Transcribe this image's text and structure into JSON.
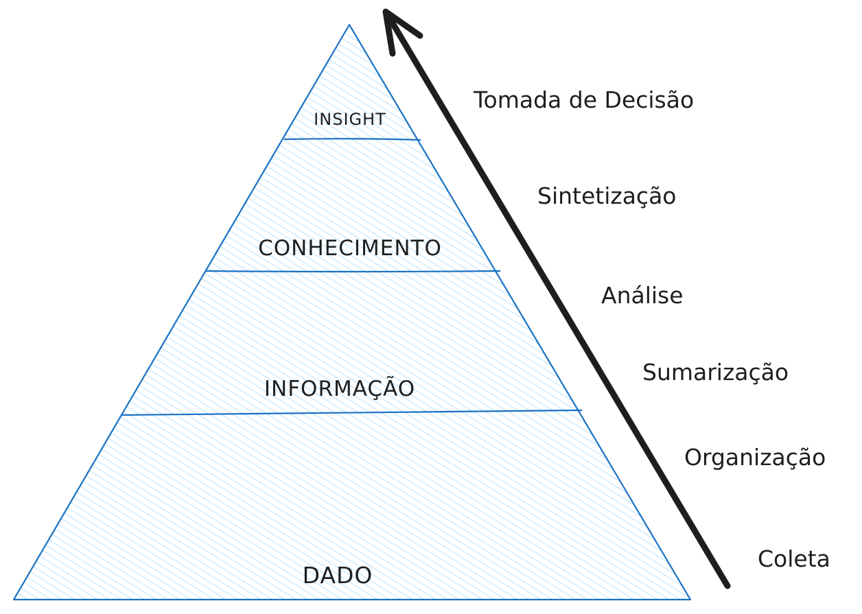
{
  "colors": {
    "pyramid_outline": "#1971c2",
    "pyramid_hatch": "#a5d8ff",
    "arrow": "#1e1e1e",
    "text": "#1e1e1e"
  },
  "pyramid": {
    "levels": [
      {
        "label": "INSIGHT"
      },
      {
        "label": "CONHECIMENTO"
      },
      {
        "label": "INFORMAÇÃO"
      },
      {
        "label": "DADO"
      }
    ]
  },
  "process": {
    "direction": "upward",
    "steps": [
      {
        "label": "Tomada de Decisão"
      },
      {
        "label": "Sintetização"
      },
      {
        "label": "Análise"
      },
      {
        "label": "Sumarização"
      },
      {
        "label": "Organização"
      },
      {
        "label": "Coleta"
      }
    ]
  }
}
